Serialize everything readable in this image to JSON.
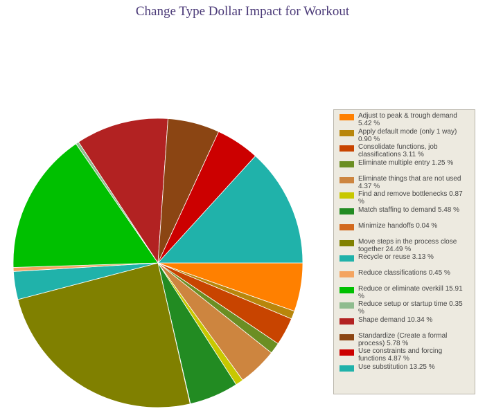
{
  "chart_data": {
    "type": "pie",
    "title": "Change Type Dollar Impact for Workout",
    "legend_position": "right",
    "slices": [
      {
        "label": "Adjust to peak & trough demand",
        "value": 5.42,
        "value_label": "5.42 %",
        "color": "#ff8000"
      },
      {
        "label": "Apply default mode (only 1 way)",
        "value": 0.9,
        "value_label": "0.90 %",
        "color": "#b8860b"
      },
      {
        "label": "Consolidate functions, job classifications",
        "value": 3.11,
        "value_label": "3.11 %",
        "color": "#c84400"
      },
      {
        "label": "Eliminate multiple entry",
        "value": 1.25,
        "value_label": "1.25 %",
        "color": "#6b8e23"
      },
      {
        "label": "Eliminate things that are not used",
        "value": 4.37,
        "value_label": "4.37 %",
        "color": "#cd853f"
      },
      {
        "label": "Find and remove bottlenecks",
        "value": 0.87,
        "value_label": "0.87 %",
        "color": "#c8c800"
      },
      {
        "label": "Match staffing to demand",
        "value": 5.48,
        "value_label": "5.48 %",
        "color": "#228b22"
      },
      {
        "label": "Minimize handoffs",
        "value": 0.04,
        "value_label": "0.04 %",
        "color": "#d2691e"
      },
      {
        "label": "Move steps in the process close together",
        "value": 24.49,
        "value_label": "24.49 %",
        "color": "#808000"
      },
      {
        "label": "Recycle or reuse",
        "value": 3.13,
        "value_label": "3.13 %",
        "color": "#20b2aa"
      },
      {
        "label": "Reduce classifications",
        "value": 0.45,
        "value_label": "0.45 %",
        "color": "#f4a460"
      },
      {
        "label": "Reduce or eliminate overkill",
        "value": 15.91,
        "value_label": "15.91 %",
        "color": "#00c000"
      },
      {
        "label": "Reduce setup or startup time",
        "value": 0.35,
        "value_label": "0.35 %",
        "color": "#8fbc8f"
      },
      {
        "label": "Shape demand",
        "value": 10.34,
        "value_label": "10.34 %",
        "color": "#b22222"
      },
      {
        "label": "Standardize (Create a formal process)",
        "value": 5.78,
        "value_label": "5.78 %",
        "color": "#8b4513"
      },
      {
        "label": "Use constraints and forcing functions",
        "value": 4.87,
        "value_label": "4.87 %",
        "color": "#cc0000"
      },
      {
        "label": "Use substitution",
        "value": 13.25,
        "value_label": "13.25 %",
        "color": "#20b2aa"
      }
    ]
  }
}
